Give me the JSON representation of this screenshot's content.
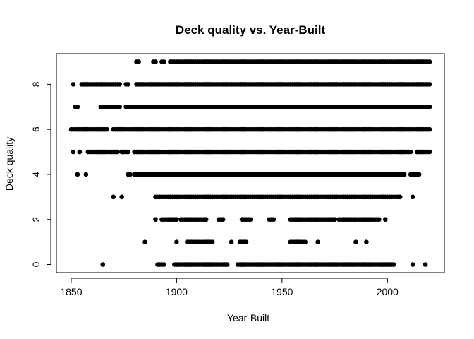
{
  "chart_data": {
    "type": "scatter",
    "title": "Deck quality vs. Year-Built",
    "xlabel": "Year-Built",
    "ylabel": "Deck quality",
    "xlim": [
      1843,
      2027
    ],
    "ylim": [
      -0.36,
      9.36
    ],
    "xticks": [
      1850,
      1900,
      1950,
      2000
    ],
    "yticks": [
      0,
      2,
      4,
      6,
      8
    ],
    "grid": false,
    "legend": "none",
    "marker_color": "#000000",
    "series": [
      {
        "ranges": [
          {
            "y": 9,
            "segments": [
              [
                1881,
                1882
              ],
              [
                1889,
                1890
              ],
              [
                1893,
                1894
              ],
              [
                1897,
                2020
              ]
            ]
          },
          {
            "y": 8,
            "segments": [
              [
                1851,
                1851
              ],
              [
                1855,
                1873
              ],
              [
                1876,
                1877
              ],
              [
                1881,
                2020
              ]
            ]
          },
          {
            "y": 7,
            "segments": [
              [
                1852,
                1853
              ],
              [
                1864,
                1873
              ],
              [
                1876,
                2020
              ]
            ]
          },
          {
            "y": 6,
            "segments": [
              [
                1850,
                1867
              ],
              [
                1870,
                2020
              ]
            ]
          },
          {
            "y": 5,
            "segments": [
              [
                1851,
                1851
              ],
              [
                1854,
                1854
              ],
              [
                1858,
                1872
              ],
              [
                1874,
                1877
              ],
              [
                1880,
                2011
              ],
              [
                2014,
                2020
              ]
            ]
          },
          {
            "y": 4,
            "segments": [
              [
                1853,
                1853
              ],
              [
                1857,
                1857
              ],
              [
                1877,
                1878
              ],
              [
                1880,
                2008
              ],
              [
                2011,
                2015
              ]
            ]
          },
          {
            "y": 3,
            "segments": [
              [
                1870,
                1870
              ],
              [
                1874,
                1874
              ],
              [
                1890,
                2006
              ],
              [
                2012,
                2012
              ]
            ]
          },
          {
            "y": 2,
            "segments": [
              [
                1890,
                1890
              ],
              [
                1893,
                1900
              ],
              [
                1902,
                1914
              ],
              [
                1920,
                1922
              ],
              [
                1931,
                1935
              ],
              [
                1944,
                1946
              ],
              [
                1954,
                1975
              ],
              [
                1977,
                1996
              ],
              [
                1999,
                1999
              ]
            ]
          },
          {
            "y": 1,
            "segments": [
              [
                1885,
                1885
              ],
              [
                1900,
                1900
              ],
              [
                1905,
                1917
              ],
              [
                1926,
                1926
              ],
              [
                1930,
                1933
              ],
              [
                1954,
                1961
              ],
              [
                1967,
                1967
              ],
              [
                1985,
                1985
              ],
              [
                1990,
                1990
              ]
            ]
          },
          {
            "y": 0,
            "segments": [
              [
                1865,
                1865
              ],
              [
                1891,
                1894
              ],
              [
                1899,
                1924
              ],
              [
                1929,
                2003
              ],
              [
                2012,
                2012
              ],
              [
                2018,
                2018
              ]
            ]
          }
        ]
      }
    ]
  }
}
